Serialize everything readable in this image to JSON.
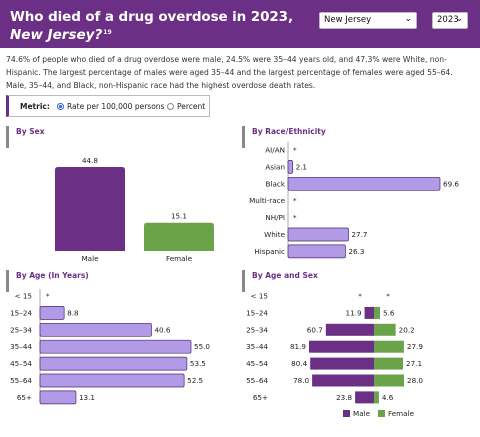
{
  "header": {
    "title_line1": "Who died of a drug overdose in 2023,",
    "title_line2": "New Jersey?",
    "title_footnote": "19",
    "state_value": "New Jersey",
    "year_value": "2023"
  },
  "summary": "74.6% of people who died of a drug overdose were male, 24.5% were 35–44 years old, and 47.3% were White, non-Hispanic. The largest percentage of males were aged 35–44 and the largest percentage of females were aged 55–64. Male, 35–44, and Black, non-Hispanic race had the highest overdose death rates.",
  "metric": {
    "label": "Metric:",
    "options": [
      "Rate per 100,000 persons",
      "Percent"
    ],
    "selected": "Rate per 100,000 persons"
  },
  "colors": {
    "header": "#6b2f85",
    "male": "#6b2f85",
    "female": "#6aa34a",
    "light_purple": "#b39ae6"
  },
  "chart_data": [
    {
      "type": "bar",
      "title": "By Sex",
      "categories": [
        "Male",
        "Female"
      ],
      "values": [
        44.8,
        15.1
      ]
    },
    {
      "type": "bar",
      "orientation": "horizontal",
      "title": "By Race/Ethnicity",
      "categories": [
        "AI/AN",
        "Asian",
        "Black",
        "Multi-race",
        "NH/PI",
        "White",
        "Hispanic"
      ],
      "values": [
        null,
        2.1,
        69.6,
        null,
        null,
        27.7,
        26.3
      ],
      "suppressed_label": "*"
    },
    {
      "type": "bar",
      "orientation": "horizontal",
      "title": "By Age (In Years)",
      "categories": [
        "< 15",
        "15–24",
        "25–34",
        "35–44",
        "45–54",
        "55–64",
        "65+"
      ],
      "values": [
        null,
        8.8,
        40.6,
        55.0,
        53.5,
        52.5,
        13.1
      ],
      "suppressed_label": "*"
    },
    {
      "type": "bar",
      "orientation": "horizontal",
      "title": "By Age and Sex",
      "categories": [
        "< 15",
        "15–24",
        "25–34",
        "35–44",
        "45–54",
        "55–64",
        "65+"
      ],
      "series": [
        {
          "name": "Male",
          "values": [
            null,
            11.9,
            60.7,
            81.9,
            80.4,
            78.0,
            23.8
          ]
        },
        {
          "name": "Female",
          "values": [
            null,
            5.6,
            20.2,
            27.9,
            27.1,
            28.0,
            4.6
          ]
        }
      ],
      "suppressed_label": "*",
      "legend": "bottom"
    }
  ]
}
